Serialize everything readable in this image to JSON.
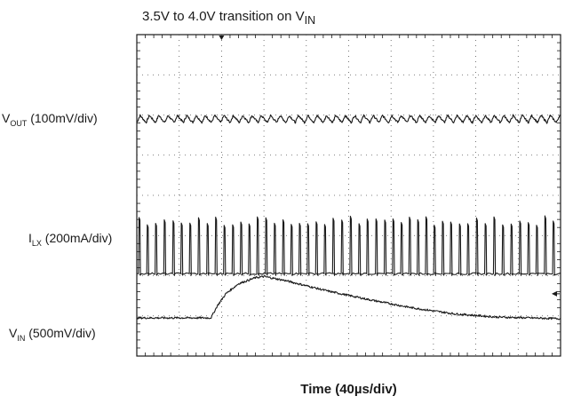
{
  "chart_data": {
    "type": "line",
    "title": {
      "text": "3.5V to 4.0V transition on V",
      "sub": "IN"
    },
    "xlabel": "Time (40µs/div)",
    "grid": true,
    "x_divisions": 10,
    "y_divisions": 8,
    "series": [
      {
        "id": "vout",
        "label": {
          "main": "V",
          "sub": "OUT",
          "scale": " (100mV/div)"
        },
        "kind": "ripple",
        "baseline_div": 5.9,
        "ripple_period_div": 0.22,
        "ripple_amplitude_div": 0.18
      },
      {
        "id": "ilx",
        "label": {
          "main": "I",
          "sub": "LX",
          "scale": " (200mA/div)"
        },
        "kind": "pulses",
        "baseline_div": 2.05,
        "pulse_period_div": 0.2,
        "pulse_height_div": [
          1.2,
          1.45
        ]
      },
      {
        "id": "vin",
        "label": {
          "main": "V",
          "sub": "IN",
          "scale": " (500mV/div)"
        },
        "kind": "step",
        "points_div": [
          [
            0,
            0.95
          ],
          [
            1.75,
            0.95
          ],
          [
            1.9,
            1.25
          ],
          [
            2.1,
            1.55
          ],
          [
            2.4,
            1.8
          ],
          [
            2.8,
            1.95
          ],
          [
            3.0,
            1.98
          ],
          [
            3.5,
            1.88
          ],
          [
            4.5,
            1.62
          ],
          [
            5.5,
            1.4
          ],
          [
            6.5,
            1.2
          ],
          [
            7.5,
            1.05
          ],
          [
            8.5,
            0.97
          ],
          [
            10,
            0.93
          ]
        ]
      }
    ],
    "trigger_marker_div": 2.0,
    "right_marker_div": 1.55
  }
}
